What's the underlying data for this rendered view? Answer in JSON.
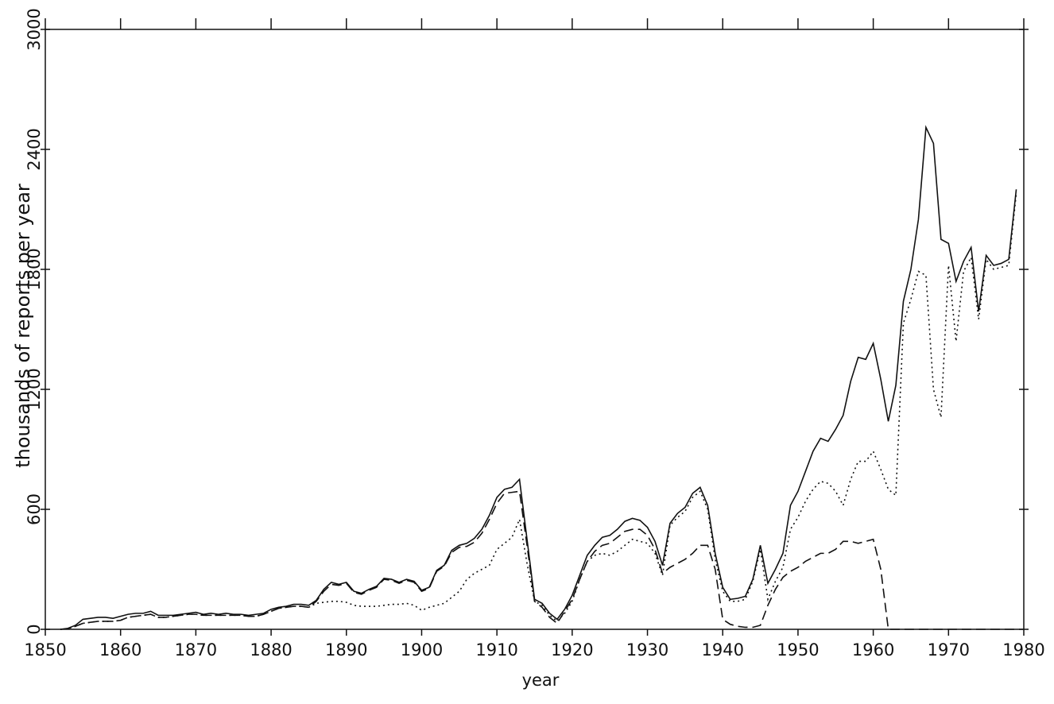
{
  "chart_data": {
    "type": "line",
    "xlabel": "year",
    "ylabel": "thousands of reports per year",
    "x": [
      1852,
      1853,
      1854,
      1855,
      1856,
      1857,
      1858,
      1859,
      1860,
      1861,
      1862,
      1863,
      1864,
      1865,
      1866,
      1867,
      1868,
      1869,
      1870,
      1871,
      1872,
      1873,
      1874,
      1875,
      1876,
      1877,
      1878,
      1879,
      1880,
      1881,
      1882,
      1883,
      1884,
      1885,
      1886,
      1887,
      1888,
      1889,
      1890,
      1891,
      1892,
      1893,
      1894,
      1895,
      1896,
      1897,
      1898,
      1899,
      1900,
      1901,
      1902,
      1903,
      1904,
      1905,
      1906,
      1907,
      1908,
      1909,
      1910,
      1911,
      1912,
      1913,
      1914,
      1915,
      1916,
      1917,
      1918,
      1919,
      1920,
      1921,
      1922,
      1923,
      1924,
      1925,
      1926,
      1927,
      1928,
      1929,
      1930,
      1931,
      1932,
      1933,
      1934,
      1935,
      1936,
      1937,
      1938,
      1939,
      1940,
      1941,
      1942,
      1943,
      1944,
      1945,
      1946,
      1947,
      1948,
      1949,
      1950,
      1951,
      1952,
      1953,
      1954,
      1955,
      1956,
      1957,
      1958,
      1959,
      1960,
      1961,
      1962,
      1963,
      1964,
      1965,
      1966,
      1967,
      1968,
      1969,
      1970,
      1971,
      1972,
      1973,
      1974,
      1975,
      1976,
      1977,
      1978,
      1979
    ],
    "series": [
      {
        "color": "#111111",
        "style": "solid",
        "values": [
          0,
          5,
          20,
          50,
          55,
          60,
          60,
          55,
          65,
          75,
          80,
          80,
          90,
          70,
          70,
          70,
          75,
          80,
          85,
          75,
          80,
          75,
          80,
          75,
          75,
          70,
          75,
          80,
          100,
          110,
          115,
          125,
          125,
          120,
          145,
          200,
          235,
          225,
          235,
          190,
          180,
          200,
          215,
          255,
          250,
          235,
          250,
          240,
          195,
          210,
          295,
          320,
          395,
          420,
          430,
          455,
          500,
          570,
          660,
          700,
          710,
          750,
          450,
          150,
          130,
          80,
          50,
          100,
          170,
          270,
          370,
          420,
          460,
          470,
          500,
          540,
          555,
          545,
          510,
          440,
          320,
          530,
          580,
          610,
          680,
          710,
          620,
          380,
          210,
          150,
          155,
          165,
          250,
          420,
          230,
          300,
          380,
          620,
          690,
          790,
          890,
          955,
          940,
          1000,
          1070,
          1240,
          1360,
          1350,
          1430,
          1250,
          1040,
          1220,
          1640,
          1800,
          2050,
          2510,
          2430,
          1950,
          1930,
          1740,
          1840,
          1910,
          1590,
          1870,
          1820,
          1830,
          1850,
          2200
        ]
      },
      {
        "color": "#111111",
        "style": "dashed",
        "values": [
          0,
          3,
          15,
          30,
          35,
          40,
          40,
          40,
          45,
          60,
          65,
          70,
          75,
          60,
          60,
          65,
          70,
          75,
          75,
          70,
          70,
          70,
          70,
          70,
          70,
          65,
          65,
          75,
          90,
          105,
          110,
          115,
          115,
          110,
          140,
          190,
          225,
          220,
          230,
          185,
          175,
          195,
          210,
          250,
          245,
          230,
          245,
          235,
          190,
          205,
          290,
          315,
          385,
          410,
          415,
          435,
          480,
          550,
          630,
          680,
          685,
          690,
          420,
          140,
          110,
          60,
          30,
          90,
          150,
          250,
          340,
          390,
          420,
          430,
          460,
          490,
          500,
          500,
          470,
          400,
          280,
          310,
          330,
          350,
          380,
          420,
          420,
          300,
          50,
          25,
          15,
          10,
          10,
          20,
          120,
          200,
          260,
          290,
          310,
          340,
          360,
          380,
          380,
          400,
          440,
          440,
          430,
          440,
          450,
          300,
          0,
          0,
          0,
          0,
          0,
          0,
          0,
          0,
          0,
          0,
          0,
          0,
          0,
          0,
          0,
          0,
          0,
          0
        ]
      },
      {
        "color": "#111111",
        "style": "dotted",
        "values": [
          0,
          3,
          15,
          30,
          35,
          40,
          40,
          40,
          45,
          60,
          65,
          70,
          75,
          60,
          60,
          65,
          70,
          75,
          75,
          70,
          70,
          70,
          70,
          70,
          70,
          65,
          65,
          75,
          90,
          105,
          110,
          115,
          115,
          110,
          130,
          135,
          140,
          140,
          135,
          120,
          115,
          115,
          115,
          120,
          125,
          125,
          130,
          120,
          95,
          110,
          120,
          130,
          160,
          190,
          250,
          280,
          300,
          320,
          400,
          430,
          460,
          550,
          330,
          140,
          120,
          70,
          40,
          80,
          140,
          250,
          340,
          370,
          380,
          370,
          390,
          420,
          450,
          440,
          430,
          380,
          270,
          520,
          560,
          590,
          660,
          690,
          600,
          350,
          190,
          140,
          140,
          150,
          240,
          400,
          150,
          240,
          310,
          500,
          560,
          640,
          700,
          740,
          730,
          690,
          620,
          750,
          840,
          840,
          890,
          800,
          700,
          670,
          1530,
          1650,
          1790,
          1770,
          1200,
          1060,
          1820,
          1440,
          1790,
          1860,
          1550,
          1850,
          1800,
          1810,
          1820,
          2180
        ]
      }
    ],
    "xlim": [
      1850,
      1980
    ],
    "xticks": [
      1850,
      1860,
      1870,
      1880,
      1890,
      1900,
      1910,
      1920,
      1930,
      1940,
      1950,
      1960,
      1970,
      1980
    ],
    "ylim": [
      0,
      3000
    ],
    "yticks": [
      0,
      600,
      1200,
      1800,
      2400,
      3000
    ],
    "grid": false
  }
}
